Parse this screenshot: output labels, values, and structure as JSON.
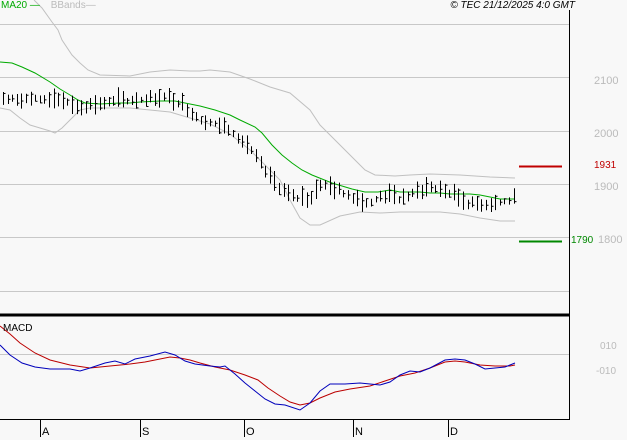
{
  "header": {
    "legend_ma": "MA20",
    "legend_bb": "BBands",
    "copyright": "© TEC 21/12/2025 4:0 GMT"
  },
  "colors": {
    "background": "#f8f8f8",
    "grid": "#c8c8c8",
    "price_bars": "#000000",
    "ma20": "#00aa00",
    "bbands": "#c0c0c0",
    "resistance": "#c00000",
    "support": "#008800",
    "macd": "#0000bb",
    "signal": "#bb0000"
  },
  "levels": {
    "resistance": "1931",
    "support": "1790"
  },
  "macd_panel": {
    "title": "MACD",
    "labels": [
      "010",
      "-010"
    ]
  },
  "chart_data": [
    {
      "type": "ohlc",
      "title": "Price with MA20 and Bollinger Bands",
      "y_ticks": [
        "2100",
        "2000",
        "1900",
        "1800"
      ],
      "ylim": [
        1700,
        2200
      ],
      "x_tick_labels": [
        "A",
        "S",
        "O",
        "N",
        "D"
      ],
      "grid": true,
      "horizontal_levels": [
        {
          "name": "resistance",
          "value": 1931
        },
        {
          "name": "support",
          "value": 1790
        }
      ],
      "series": [
        {
          "name": "MA20",
          "approx_values": [
            2135,
            2120,
            2090,
            2060,
            2050,
            2050,
            2055,
            2045,
            2025,
            2000,
            1960,
            1930,
            1900,
            1885,
            1880,
            1875,
            1880,
            1875,
            1875,
            1870
          ]
        },
        {
          "name": "BBands upper",
          "approx_values": [
            2310,
            2250,
            2150,
            2100,
            2100,
            2120,
            2125,
            2100,
            2060,
            1990,
            1920,
            1900,
            1895,
            1900,
            1905
          ]
        },
        {
          "name": "BBands lower",
          "approx_values": [
            2010,
            1990,
            1960,
            1990,
            2000,
            2010,
            2000,
            1960,
            1900,
            1850,
            1820,
            1820,
            1835,
            1830,
            1835
          ]
        }
      ]
    },
    {
      "type": "line",
      "title": "MACD",
      "y_ticks": [
        "010",
        "-010"
      ],
      "series": [
        {
          "name": "MACD",
          "approx_values": [
            12,
            4,
            -2,
            -4,
            -4,
            -2,
            0,
            3,
            1,
            -3,
            -6,
            -14,
            -22,
            -10,
            -6,
            -2,
            2,
            3,
            -1,
            -1
          ]
        },
        {
          "name": "Signal",
          "approx_values": [
            18,
            8,
            2,
            -2,
            -3,
            -2,
            -1,
            0,
            1,
            -1,
            -4,
            -9,
            -16,
            -14,
            -9,
            -6,
            -2,
            1,
            0,
            -1
          ]
        }
      ]
    }
  ]
}
